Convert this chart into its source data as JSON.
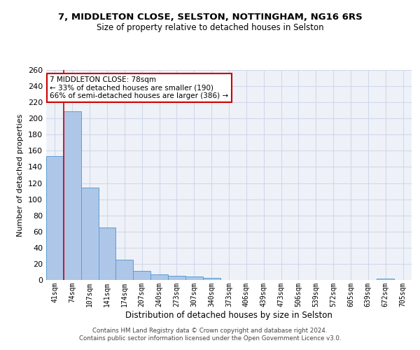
{
  "title": "7, MIDDLETON CLOSE, SELSTON, NOTTINGHAM, NG16 6RS",
  "subtitle": "Size of property relative to detached houses in Selston",
  "xlabel": "Distribution of detached houses by size in Selston",
  "ylabel": "Number of detached properties",
  "bar_labels": [
    "41sqm",
    "74sqm",
    "107sqm",
    "141sqm",
    "174sqm",
    "207sqm",
    "240sqm",
    "273sqm",
    "307sqm",
    "340sqm",
    "373sqm",
    "406sqm",
    "439sqm",
    "473sqm",
    "506sqm",
    "539sqm",
    "572sqm",
    "605sqm",
    "639sqm",
    "672sqm",
    "705sqm"
  ],
  "bar_values": [
    153,
    209,
    114,
    65,
    25,
    11,
    7,
    5,
    4,
    3,
    0,
    0,
    0,
    0,
    0,
    0,
    0,
    0,
    0,
    2,
    0
  ],
  "bar_color": "#aec6e8",
  "bar_edgecolor": "#5a9fd4",
  "property_line_x": 0.5,
  "annotation_text": "7 MIDDLETON CLOSE: 78sqm\n← 33% of detached houses are smaller (190)\n66% of semi-detached houses are larger (386) →",
  "annotation_box_color": "#ffffff",
  "annotation_box_edgecolor": "#cc0000",
  "property_line_color": "#cc0000",
  "grid_color": "#d0d8e8",
  "bg_color": "#eef2f8",
  "footer_line1": "Contains HM Land Registry data © Crown copyright and database right 2024.",
  "footer_line2": "Contains public sector information licensed under the Open Government Licence v3.0.",
  "ylim": [
    0,
    260
  ],
  "yticks": [
    0,
    20,
    40,
    60,
    80,
    100,
    120,
    140,
    160,
    180,
    200,
    220,
    240,
    260
  ]
}
